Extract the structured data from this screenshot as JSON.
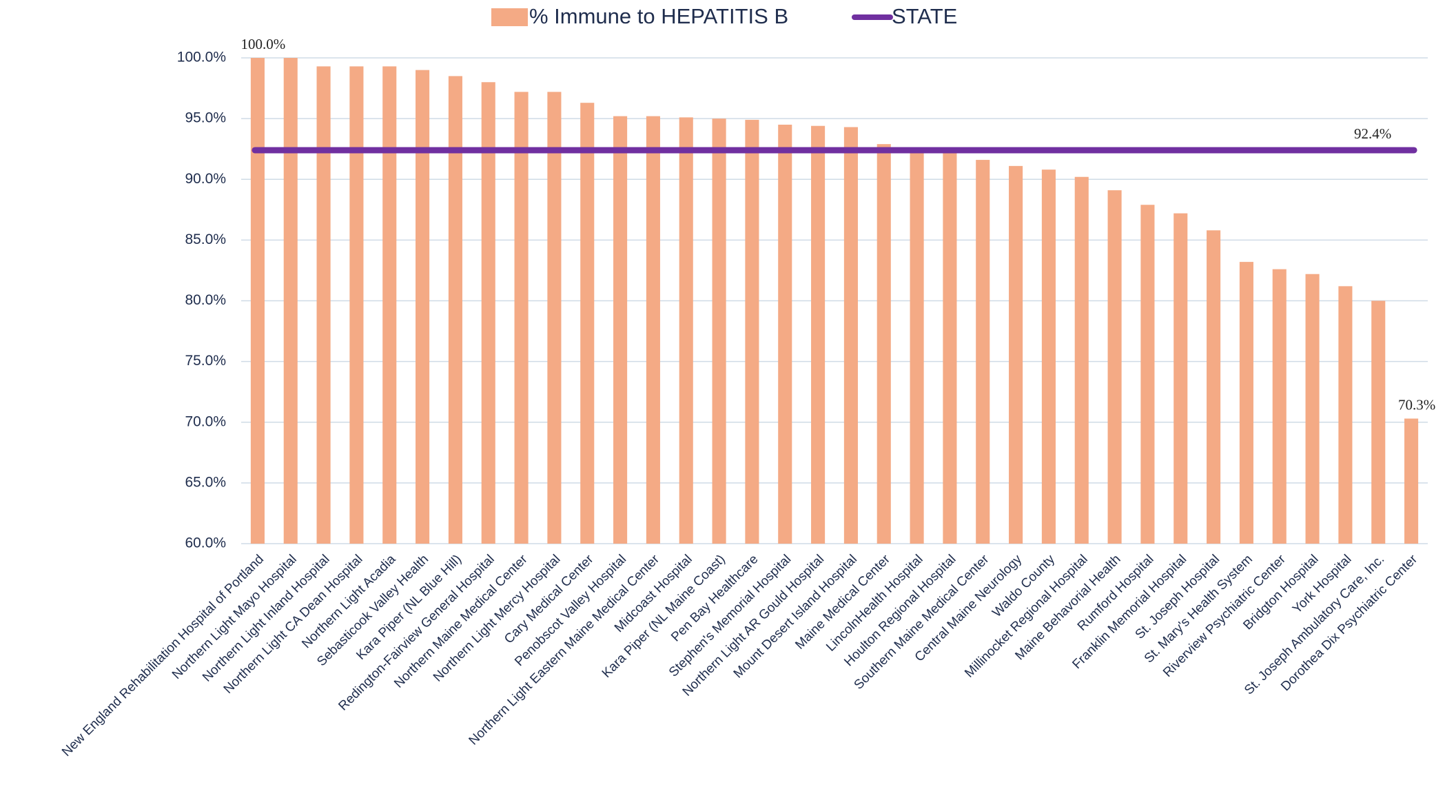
{
  "chart_data": {
    "type": "bar",
    "categories": [
      "New England Rehabilitation Hospital of Portland",
      "Northern Light Mayo Hospital",
      "Northern Light Inland Hospital",
      "Northern Light CA Dean Hospital",
      "Northern Light Acadia",
      "Sebasticook Valley Health",
      "Kara Piper (NL Blue Hill)",
      "Redington-Fairview General Hospital",
      "Northern Maine Medical Center",
      "Northern Light Mercy Hospital",
      "Cary Medical Center",
      "Penobscot Valley Hospital",
      "Northern Light Eastern Maine Medical Center",
      "Midcoast Hospital",
      "Kara Piper (NL Maine Coast)",
      "Pen Bay Healthcare",
      "Stephen's Memorial Hospital",
      "Northern Light AR Gould Hospital",
      "Mount Desert Island Hospital",
      "Maine Medical Center",
      "LincolnHealth Hospital",
      "Houlton Regional Hospital",
      "Southern Maine Medical Center",
      "Central Maine Neurology",
      "Waldo County",
      "Millinocket Regional Hospital",
      "Maine Behavorial Health",
      "Rumford Hospital",
      "Franklin Memorial Hospital",
      "St. Joseph Hospital",
      "St. Mary's Health System",
      "Riverview Psychiatric Center",
      "Bridgton Hospital",
      "York Hospital",
      "St. Joseph Ambulatory Care, Inc.",
      "Dorothea Dix Psychiatric Center"
    ],
    "series": [
      {
        "name": "% Immune to HEPATITIS B",
        "color": "#f4aa85",
        "values": [
          100.0,
          100.0,
          99.3,
          99.3,
          99.3,
          99.0,
          98.5,
          98.0,
          97.2,
          97.2,
          96.3,
          95.2,
          95.2,
          95.1,
          95.0,
          94.9,
          94.5,
          94.4,
          94.3,
          92.9,
          92.5,
          92.3,
          91.6,
          91.1,
          90.8,
          90.2,
          89.1,
          87.9,
          87.2,
          85.8,
          83.2,
          82.6,
          82.2,
          81.2,
          80.0,
          70.3
        ],
        "value_labels": [
          "100.0%",
          null,
          null,
          null,
          null,
          null,
          null,
          null,
          null,
          null,
          null,
          null,
          null,
          null,
          null,
          null,
          null,
          null,
          null,
          null,
          null,
          null,
          null,
          null,
          null,
          null,
          null,
          null,
          null,
          null,
          null,
          null,
          null,
          null,
          null,
          "70.3%"
        ]
      },
      {
        "name": "STATE",
        "color": "#7030a0",
        "line_value": 92.4,
        "line_label": "92.4%"
      }
    ],
    "ylim": [
      60,
      100
    ],
    "yticks": [
      {
        "value": 60,
        "label": "60.0%"
      },
      {
        "value": 65,
        "label": "65.0%"
      },
      {
        "value": 70,
        "label": "70.0%"
      },
      {
        "value": 75,
        "label": "75.0%"
      },
      {
        "value": 80,
        "label": "80.0%"
      },
      {
        "value": 85,
        "label": "85.0%"
      },
      {
        "value": 90,
        "label": "90.0%"
      },
      {
        "value": 95,
        "label": "95.0%"
      },
      {
        "value": 100,
        "label": "100.0%"
      }
    ],
    "grid": true,
    "legend": "top"
  }
}
